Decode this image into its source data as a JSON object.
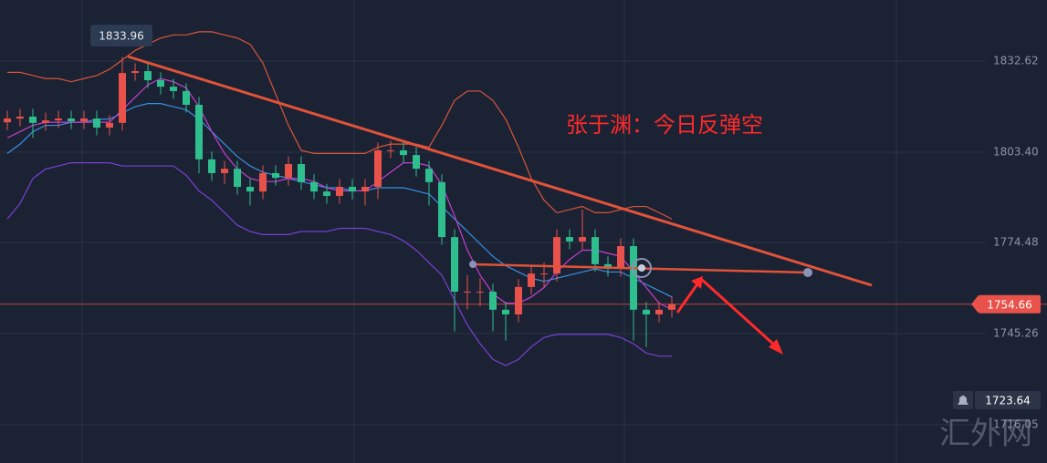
{
  "chart_data": {
    "type": "candlestick",
    "annotation": "张于渊：今日反弹空",
    "watermark": "汇外网",
    "ylim": [
      1703.76,
      1852.2
    ],
    "yticks": [
      1832.62,
      {
        "value": 1803.4,
        "label": "1803.40"
      },
      1774.48,
      1745.26,
      1716.05
    ],
    "alert_price": 1723.64,
    "up_color": "#e8524a",
    "down_color": "#2fbf8f",
    "open": [
      1813.0,
      1814.2,
      1814.8,
      1812.8,
      1813.6,
      1814.2,
      1813.3,
      1814.2,
      1811.3,
      1812.8,
      1828.8,
      1829.4,
      1826.5,
      1824.4,
      1823.0,
      1818.6,
      1801.1,
      1796.7,
      1798.1,
      1792.3,
      1790.8,
      1796.7,
      1795.2,
      1799.6,
      1793.8,
      1790.8,
      1789.4,
      1792.3,
      1790.8,
      1792.3,
      1804.0,
      1804.0,
      1802.5,
      1798.1,
      1793.8,
      1776.2,
      1758.7,
      1758.7,
      1758.7,
      1752.9,
      1751.4,
      1760.2,
      1764.5,
      1764.5,
      1776.2,
      1774.8,
      1776.2,
      1767.5,
      1766.0,
      1773.3,
      1752.9,
      1751.4,
      1752.9
    ],
    "high": [
      1816.7,
      1817.3,
      1817.3,
      1816.1,
      1816.7,
      1816.7,
      1816.7,
      1816.7,
      1815.3,
      1833.96,
      1831.9,
      1831.9,
      1829.0,
      1826.9,
      1825.5,
      1821.1,
      1803.6,
      1800.6,
      1800.6,
      1794.8,
      1799.2,
      1799.2,
      1802.1,
      1802.1,
      1796.3,
      1793.3,
      1794.8,
      1794.8,
      1794.8,
      1806.5,
      1807.0,
      1806.5,
      1805.0,
      1800.6,
      1796.3,
      1778.7,
      1764.0,
      1763.0,
      1761.2,
      1755.4,
      1762.7,
      1767.0,
      1768.0,
      1778.7,
      1778.7,
      1785.0,
      1778.7,
      1770.0,
      1775.8,
      1775.8,
      1755.4,
      1755.4,
      1757.2
    ],
    "low": [
      1810.5,
      1811.7,
      1808.0,
      1810.3,
      1811.1,
      1810.8,
      1810.8,
      1808.8,
      1808.8,
      1810.3,
      1826.3,
      1824.0,
      1821.9,
      1820.5,
      1816.1,
      1796.6,
      1794.2,
      1793.2,
      1789.8,
      1786.3,
      1788.3,
      1792.7,
      1792.7,
      1791.3,
      1788.3,
      1786.9,
      1786.9,
      1788.3,
      1786.3,
      1788.3,
      1801.5,
      1800.0,
      1795.6,
      1786.3,
      1773.7,
      1746.0,
      1753.0,
      1754.0,
      1746.0,
      1743.0,
      1748.9,
      1757.7,
      1760.0,
      1762.0,
      1772.3,
      1772.3,
      1765.0,
      1763.5,
      1763.5,
      1743.0,
      1741.0,
      1748.9,
      1750.4
    ],
    "close": [
      1814.2,
      1814.8,
      1812.8,
      1813.6,
      1814.2,
      1813.3,
      1814.2,
      1811.3,
      1812.8,
      1828.8,
      1829.4,
      1826.5,
      1824.4,
      1823.0,
      1818.6,
      1801.1,
      1796.7,
      1798.1,
      1792.3,
      1790.8,
      1796.7,
      1795.2,
      1799.6,
      1793.8,
      1790.8,
      1789.4,
      1792.3,
      1790.8,
      1792.3,
      1804.0,
      1804.0,
      1802.5,
      1798.1,
      1793.8,
      1776.2,
      1758.7,
      1758.7,
      1758.7,
      1752.9,
      1751.4,
      1760.2,
      1764.5,
      1764.5,
      1776.2,
      1774.8,
      1776.2,
      1767.5,
      1766.0,
      1773.3,
      1752.9,
      1751.4,
      1752.9,
      1754.66
    ],
    "series": [
      {
        "color": "#d9553a",
        "values": [
          1829,
          1829,
          1828,
          1827,
          1827,
          1826,
          1827,
          1828,
          1830,
          1833,
          1836,
          1838,
          1840,
          1841,
          1841,
          1842,
          1842,
          1841,
          1840,
          1838,
          1832,
          1822,
          1812,
          1804,
          1803,
          1803,
          1803,
          1803,
          1803,
          1805,
          1806,
          1806,
          1806,
          1805,
          1812,
          1820,
          1823,
          1823,
          1820,
          1814,
          1805,
          1795,
          1788,
          1784,
          1785,
          1786,
          1784,
          1784,
          1785,
          1786,
          1786,
          1784,
          1782
        ]
      },
      {
        "color": "#7b3fd6",
        "values": [
          1782,
          1787,
          1795,
          1798,
          1799,
          1800,
          1800,
          1800,
          1800,
          1799,
          1799,
          1799,
          1799,
          1799,
          1796,
          1791,
          1788,
          1784,
          1780,
          1778,
          1777,
          1777,
          1777,
          1778,
          1778,
          1778,
          1779,
          1779,
          1779,
          1778,
          1777,
          1775,
          1772,
          1768,
          1764,
          1756,
          1748,
          1742,
          1737,
          1735,
          1737,
          1741,
          1744,
          1745,
          1745,
          1745,
          1745,
          1745,
          1744,
          1742,
          1739,
          1738,
          1738
        ]
      },
      {
        "color": "#3a8fe0",
        "values": [
          1803,
          1806,
          1810,
          1812,
          1812,
          1813,
          1813,
          1814,
          1814,
          1816,
          1818,
          1819,
          1819,
          1818,
          1817,
          1814,
          1810,
          1806,
          1802,
          1799,
          1797,
          1796,
          1795,
          1794,
          1793,
          1792,
          1792,
          1791,
          1791,
          1792,
          1792,
          1792,
          1791,
          1790,
          1786,
          1782,
          1778,
          1774,
          1770,
          1767,
          1765,
          1763,
          1762,
          1763,
          1764,
          1765,
          1766,
          1765,
          1765,
          1763,
          1761,
          1759,
          1757
        ]
      },
      {
        "color": "#c63fd0",
        "values": [
          1808,
          1810,
          1812,
          1813,
          1813,
          1813,
          1813,
          1813,
          1813,
          1817,
          1821,
          1825,
          1827,
          1826,
          1824,
          1818,
          1810,
          1803,
          1798,
          1795,
          1794,
          1794,
          1795,
          1795,
          1794,
          1792,
          1791,
          1791,
          1791,
          1794,
          1797,
          1800,
          1800,
          1799,
          1793,
          1783,
          1772,
          1764,
          1758,
          1755,
          1755,
          1757,
          1760,
          1765,
          1769,
          1772,
          1772,
          1771,
          1770,
          1765,
          1760,
          1755,
          1753
        ]
      }
    ]
  }
}
